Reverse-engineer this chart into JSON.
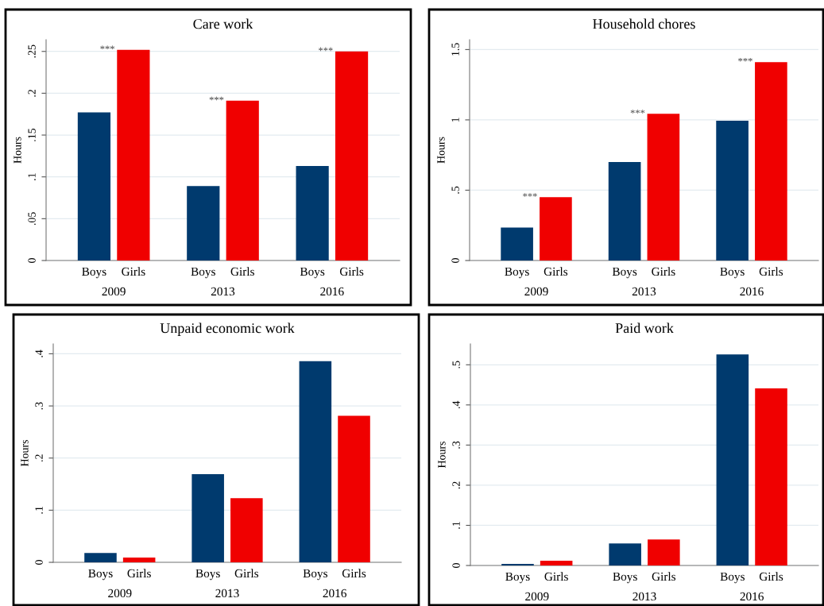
{
  "chart_data": [
    {
      "type": "bar",
      "title": "Care work",
      "ylabel": "Hours",
      "categories": [
        "2009",
        "2013",
        "2016"
      ],
      "series": [
        {
          "name": "Boys",
          "color": "#003a6e",
          "values": [
            0.177,
            0.089,
            0.113
          ]
        },
        {
          "name": "Girls",
          "color": "#f00000",
          "values": [
            0.252,
            0.191,
            0.25
          ]
        }
      ],
      "ylim": [
        0,
        0.264
      ],
      "yticks": [
        0,
        {
          "value": 0.05,
          "label": ".05"
        },
        {
          "value": 0.1,
          "label": ".1"
        },
        {
          "value": 0.15,
          "label": ".15"
        },
        {
          "value": 0.2,
          "label": ".2"
        },
        {
          "value": 0.25,
          "label": ".25"
        }
      ],
      "grid": "y",
      "legend": false,
      "annotations": [
        {
          "text": "***",
          "x": "2009",
          "y": 0.252
        },
        {
          "text": "***",
          "x": "2013",
          "y": 0.191
        },
        {
          "text": "***",
          "x": "2016",
          "y": 0.25
        }
      ]
    },
    {
      "type": "bar",
      "title": "Household chores",
      "ylabel": "Hours",
      "categories": [
        "2009",
        "2013",
        "2016"
      ],
      "series": [
        {
          "name": "Boys",
          "color": "#003a6e",
          "values": [
            0.234,
            0.7,
            0.994
          ]
        },
        {
          "name": "Girls",
          "color": "#f00000",
          "values": [
            0.45,
            1.043,
            1.411
          ]
        }
      ],
      "ylim": [
        0,
        1.57
      ],
      "yticks": [
        0,
        {
          "value": 0.5,
          "label": ".5"
        },
        1,
        1.5
      ],
      "grid": "y",
      "legend": false,
      "annotations": [
        {
          "text": "***",
          "x": "2009",
          "y": 0.45
        },
        {
          "text": "***",
          "x": "2013",
          "y": 1.043
        },
        {
          "text": "***",
          "x": "2016",
          "y": 1.411
        }
      ]
    },
    {
      "type": "bar",
      "title": "Unpaid economic work",
      "ylabel": "Hours",
      "categories": [
        "2009",
        "2013",
        "2016"
      ],
      "series": [
        {
          "name": "Boys",
          "color": "#003a6e",
          "values": [
            0.018,
            0.169,
            0.386
          ]
        },
        {
          "name": "Girls",
          "color": "#f00000",
          "values": [
            0.009,
            0.123,
            0.281
          ]
        }
      ],
      "ylim": [
        0,
        0.419
      ],
      "yticks": [
        0,
        {
          "value": 0.1,
          "label": ".1"
        },
        {
          "value": 0.2,
          "label": ".2"
        },
        {
          "value": 0.3,
          "label": ".3"
        },
        {
          "value": 0.4,
          "label": ".4"
        }
      ],
      "grid": "y",
      "legend": false
    },
    {
      "type": "bar",
      "title": "Paid work",
      "ylabel": "Hours",
      "categories": [
        "2009",
        "2013",
        "2016"
      ],
      "series": [
        {
          "name": "Boys",
          "color": "#003a6e",
          "values": [
            0.004,
            0.055,
            0.526
          ]
        },
        {
          "name": "Girls",
          "color": "#f00000",
          "values": [
            0.012,
            0.065,
            0.441
          ]
        }
      ],
      "ylim": [
        0,
        0.552
      ],
      "yticks": [
        0,
        {
          "value": 0.1,
          "label": ".1"
        },
        {
          "value": 0.2,
          "label": ".2"
        },
        {
          "value": 0.3,
          "label": ".3"
        },
        {
          "value": 0.4,
          "label": ".4"
        },
        {
          "value": 0.5,
          "label": ".5"
        }
      ],
      "grid": "y",
      "legend": false
    }
  ]
}
